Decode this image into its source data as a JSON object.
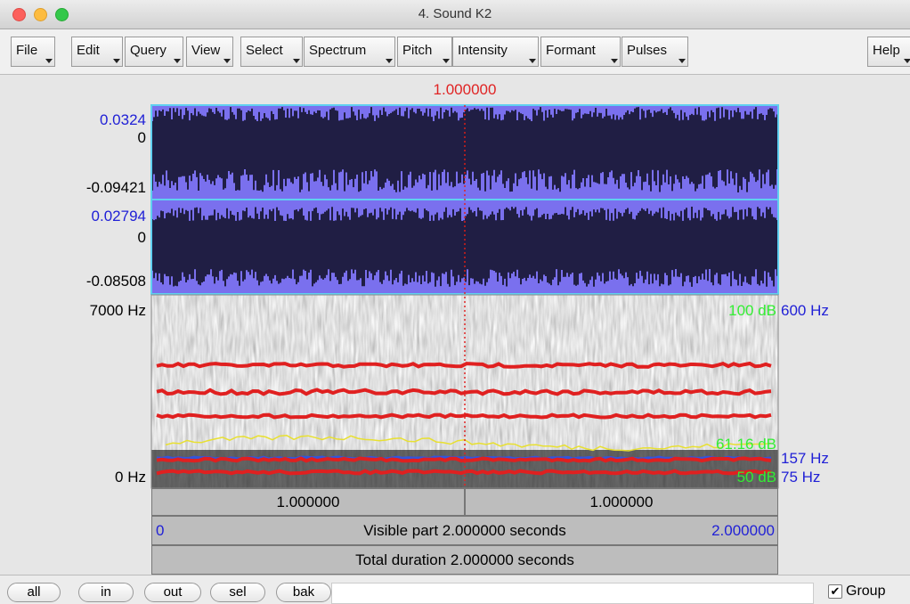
{
  "window": {
    "title": "4. Sound K2"
  },
  "menu": [
    "File",
    "Edit",
    "Query",
    "View",
    "Select",
    "Spectrum",
    "Pitch",
    "Intensity",
    "Formant",
    "Pulses"
  ],
  "help": "Help",
  "cursor_time": "1.000000",
  "waveform": {
    "channels": [
      {
        "max": "0.0324",
        "zero": "0",
        "min": "-0.09421"
      },
      {
        "max": "0.02794",
        "zero": "0",
        "min": "-0.08508"
      }
    ]
  },
  "spectrogram": {
    "max_freq": "7000 Hz",
    "min_freq": "0 Hz"
  },
  "right_labels": {
    "intensity_max": "100 dB",
    "pitch_max": "600 Hz",
    "intensity_cursor": "61.16 dB",
    "pitch_cursor": "157 Hz",
    "intensity_min": "50 dB",
    "pitch_min": "75 Hz"
  },
  "time_bars": {
    "left": "1.000000",
    "right": "1.000000",
    "visible_start": "0",
    "visible_label": "Visible part 2.000000 seconds",
    "visible_end": "2.000000",
    "total": "Total duration 2.000000 seconds"
  },
  "toolbar": {
    "buttons": [
      "all",
      "in",
      "out",
      "sel",
      "bak"
    ],
    "group": "Group"
  }
}
